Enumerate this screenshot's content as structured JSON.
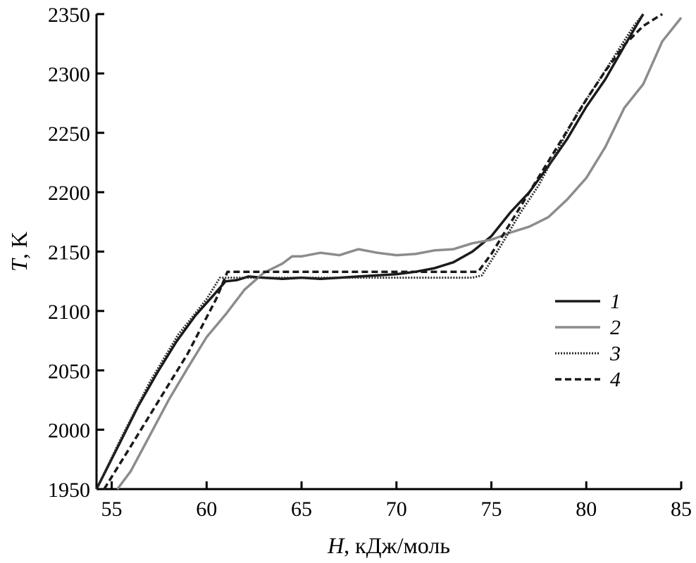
{
  "chart_data": {
    "type": "line",
    "title": "",
    "xlabel": {
      "var": "H",
      "unit": ", кДж/моль"
    },
    "ylabel": {
      "var": "T",
      "unit": ", K"
    },
    "xlim": [
      54.2,
      85
    ],
    "ylim": [
      1950,
      2350
    ],
    "xticks": [
      55,
      60,
      65,
      70,
      75,
      80,
      85
    ],
    "yticks": [
      1950,
      2000,
      2050,
      2100,
      2150,
      2200,
      2250,
      2300,
      2350
    ],
    "grid": false,
    "legend_position": "right-center",
    "series": [
      {
        "name": "1",
        "color": "#1a1a1a",
        "style": "solid",
        "points": [
          [
            54.2,
            1950
          ],
          [
            55.4,
            1988
          ],
          [
            56.4,
            2020
          ],
          [
            57.4,
            2048
          ],
          [
            58.4,
            2074
          ],
          [
            59.4,
            2096
          ],
          [
            60.4,
            2114
          ],
          [
            61.0,
            2125
          ],
          [
            61.6,
            2126
          ],
          [
            62.2,
            2129
          ],
          [
            63.0,
            2128
          ],
          [
            64.0,
            2127
          ],
          [
            65.0,
            2128
          ],
          [
            66.0,
            2127
          ],
          [
            67.0,
            2128
          ],
          [
            68.0,
            2129
          ],
          [
            69.0,
            2130
          ],
          [
            70.0,
            2131
          ],
          [
            70.5,
            2132
          ],
          [
            71.0,
            2133
          ],
          [
            72.0,
            2136
          ],
          [
            73.0,
            2141
          ],
          [
            74.0,
            2150
          ],
          [
            75.0,
            2163
          ],
          [
            76.0,
            2183
          ],
          [
            77.0,
            2200
          ],
          [
            78.0,
            2222
          ],
          [
            79.0,
            2245
          ],
          [
            80.0,
            2272
          ],
          [
            81.0,
            2295
          ],
          [
            82.0,
            2323
          ],
          [
            82.7,
            2342
          ],
          [
            83.0,
            2350
          ]
        ]
      },
      {
        "name": "2",
        "color": "#8c8c8c",
        "style": "solid",
        "points": [
          [
            55.3,
            1950
          ],
          [
            56.0,
            1965
          ],
          [
            57.0,
            1995
          ],
          [
            58.0,
            2025
          ],
          [
            59.0,
            2052
          ],
          [
            60.0,
            2078
          ],
          [
            61.0,
            2097
          ],
          [
            62.0,
            2118
          ],
          [
            63.0,
            2132
          ],
          [
            64.0,
            2140
          ],
          [
            64.5,
            2146
          ],
          [
            65.0,
            2146
          ],
          [
            66.0,
            2149
          ],
          [
            67.0,
            2147
          ],
          [
            68.0,
            2152
          ],
          [
            69.0,
            2149
          ],
          [
            70.0,
            2147
          ],
          [
            71.0,
            2148
          ],
          [
            72.0,
            2151
          ],
          [
            73.0,
            2152
          ],
          [
            74.0,
            2157
          ],
          [
            75.0,
            2160
          ],
          [
            76.0,
            2166
          ],
          [
            77.0,
            2171
          ],
          [
            78.0,
            2179
          ],
          [
            79.0,
            2194
          ],
          [
            80.0,
            2212
          ],
          [
            81.0,
            2238
          ],
          [
            82.0,
            2271
          ],
          [
            83.0,
            2291
          ],
          [
            84.0,
            2327
          ],
          [
            85.0,
            2347
          ]
        ]
      },
      {
        "name": "3",
        "color": "#2a2a2a",
        "style": "dotted",
        "points": [
          [
            54.2,
            1950
          ],
          [
            55.5,
            1993
          ],
          [
            57.0,
            2040
          ],
          [
            58.5,
            2080
          ],
          [
            60.0,
            2110
          ],
          [
            60.7,
            2128
          ],
          [
            62.0,
            2128
          ],
          [
            74.0,
            2128
          ],
          [
            74.5,
            2130
          ],
          [
            75.5,
            2155
          ],
          [
            76.5,
            2182
          ],
          [
            77.5,
            2206
          ],
          [
            78.5,
            2236
          ],
          [
            79.5,
            2266
          ],
          [
            80.5,
            2290
          ],
          [
            81.5,
            2315
          ],
          [
            82.5,
            2340
          ],
          [
            83.0,
            2350
          ]
        ]
      },
      {
        "name": "4",
        "color": "#1a1a1a",
        "style": "dashed",
        "points": [
          [
            54.6,
            1950
          ],
          [
            56.0,
            1986
          ],
          [
            57.5,
            2025
          ],
          [
            59.0,
            2064
          ],
          [
            60.5,
            2110
          ],
          [
            61.1,
            2133
          ],
          [
            74.3,
            2133
          ],
          [
            75.0,
            2148
          ],
          [
            76.0,
            2174
          ],
          [
            77.0,
            2200
          ],
          [
            78.0,
            2226
          ],
          [
            79.0,
            2252
          ],
          [
            80.0,
            2278
          ],
          [
            81.0,
            2302
          ],
          [
            82.0,
            2324
          ],
          [
            83.0,
            2340
          ],
          [
            84.0,
            2350
          ]
        ]
      }
    ]
  }
}
